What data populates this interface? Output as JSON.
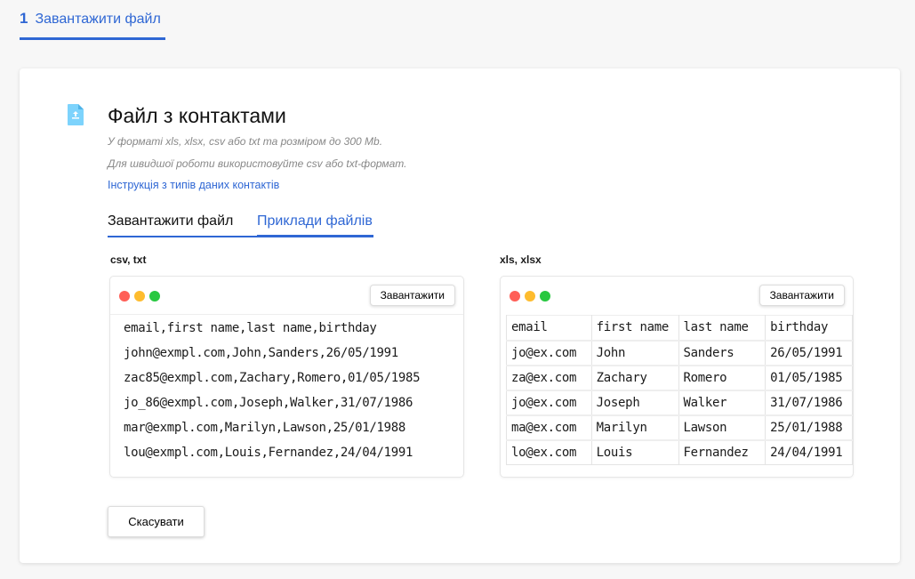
{
  "stepper": {
    "number": "1",
    "label": "Завантажити файл"
  },
  "header": {
    "title": "Файл з контактами",
    "subtitle1": "У форматі xls, xlsx, csv або txt та розміром до 300 Mb.",
    "subtitle2": "Для швидшої роботи використовуйте csv або txt-формат.",
    "link": "Інструкція з типів даних контактів"
  },
  "tabs": [
    {
      "label": "Завантажити файл",
      "active": false
    },
    {
      "label": "Приклади файлів",
      "active": true
    }
  ],
  "csv": {
    "label": "csv, txt",
    "download": "Завантажити",
    "lines": [
      "email,first name,last name,birthday",
      "john@exmpl.com,John,Sanders,26/05/1991",
      "zac85@exmpl.com,Zachary,Romero,01/05/1985",
      "jo_86@exmpl.com,Joseph,Walker,31/07/1986",
      "mar@exmpl.com,Marilyn,Lawson,25/01/1988",
      "lou@exmpl.com,Louis,Fernandez,24/04/1991"
    ]
  },
  "xls": {
    "label": "xls, xlsx",
    "download": "Завантажити",
    "rows": [
      [
        "email",
        "first name",
        "last name",
        "birthday"
      ],
      [
        "jo@ex.com",
        "John",
        "Sanders",
        "26/05/1991"
      ],
      [
        "za@ex.com",
        "Zachary",
        "Romero",
        "01/05/1985"
      ],
      [
        "jo@ex.com",
        "Joseph",
        "Walker",
        "31/07/1986"
      ],
      [
        "ma@ex.com",
        "Marilyn",
        "Lawson",
        "25/01/1988"
      ],
      [
        "lo@ex.com",
        "Louis",
        "Fernandez",
        "24/04/1991"
      ]
    ]
  },
  "cancel": "Скасувати",
  "colors": {
    "accent": "#2f67d4",
    "dot_red": "#ff5f57",
    "dot_yellow": "#febc2e",
    "dot_green": "#28c840",
    "icon": "#7dd3fc"
  }
}
